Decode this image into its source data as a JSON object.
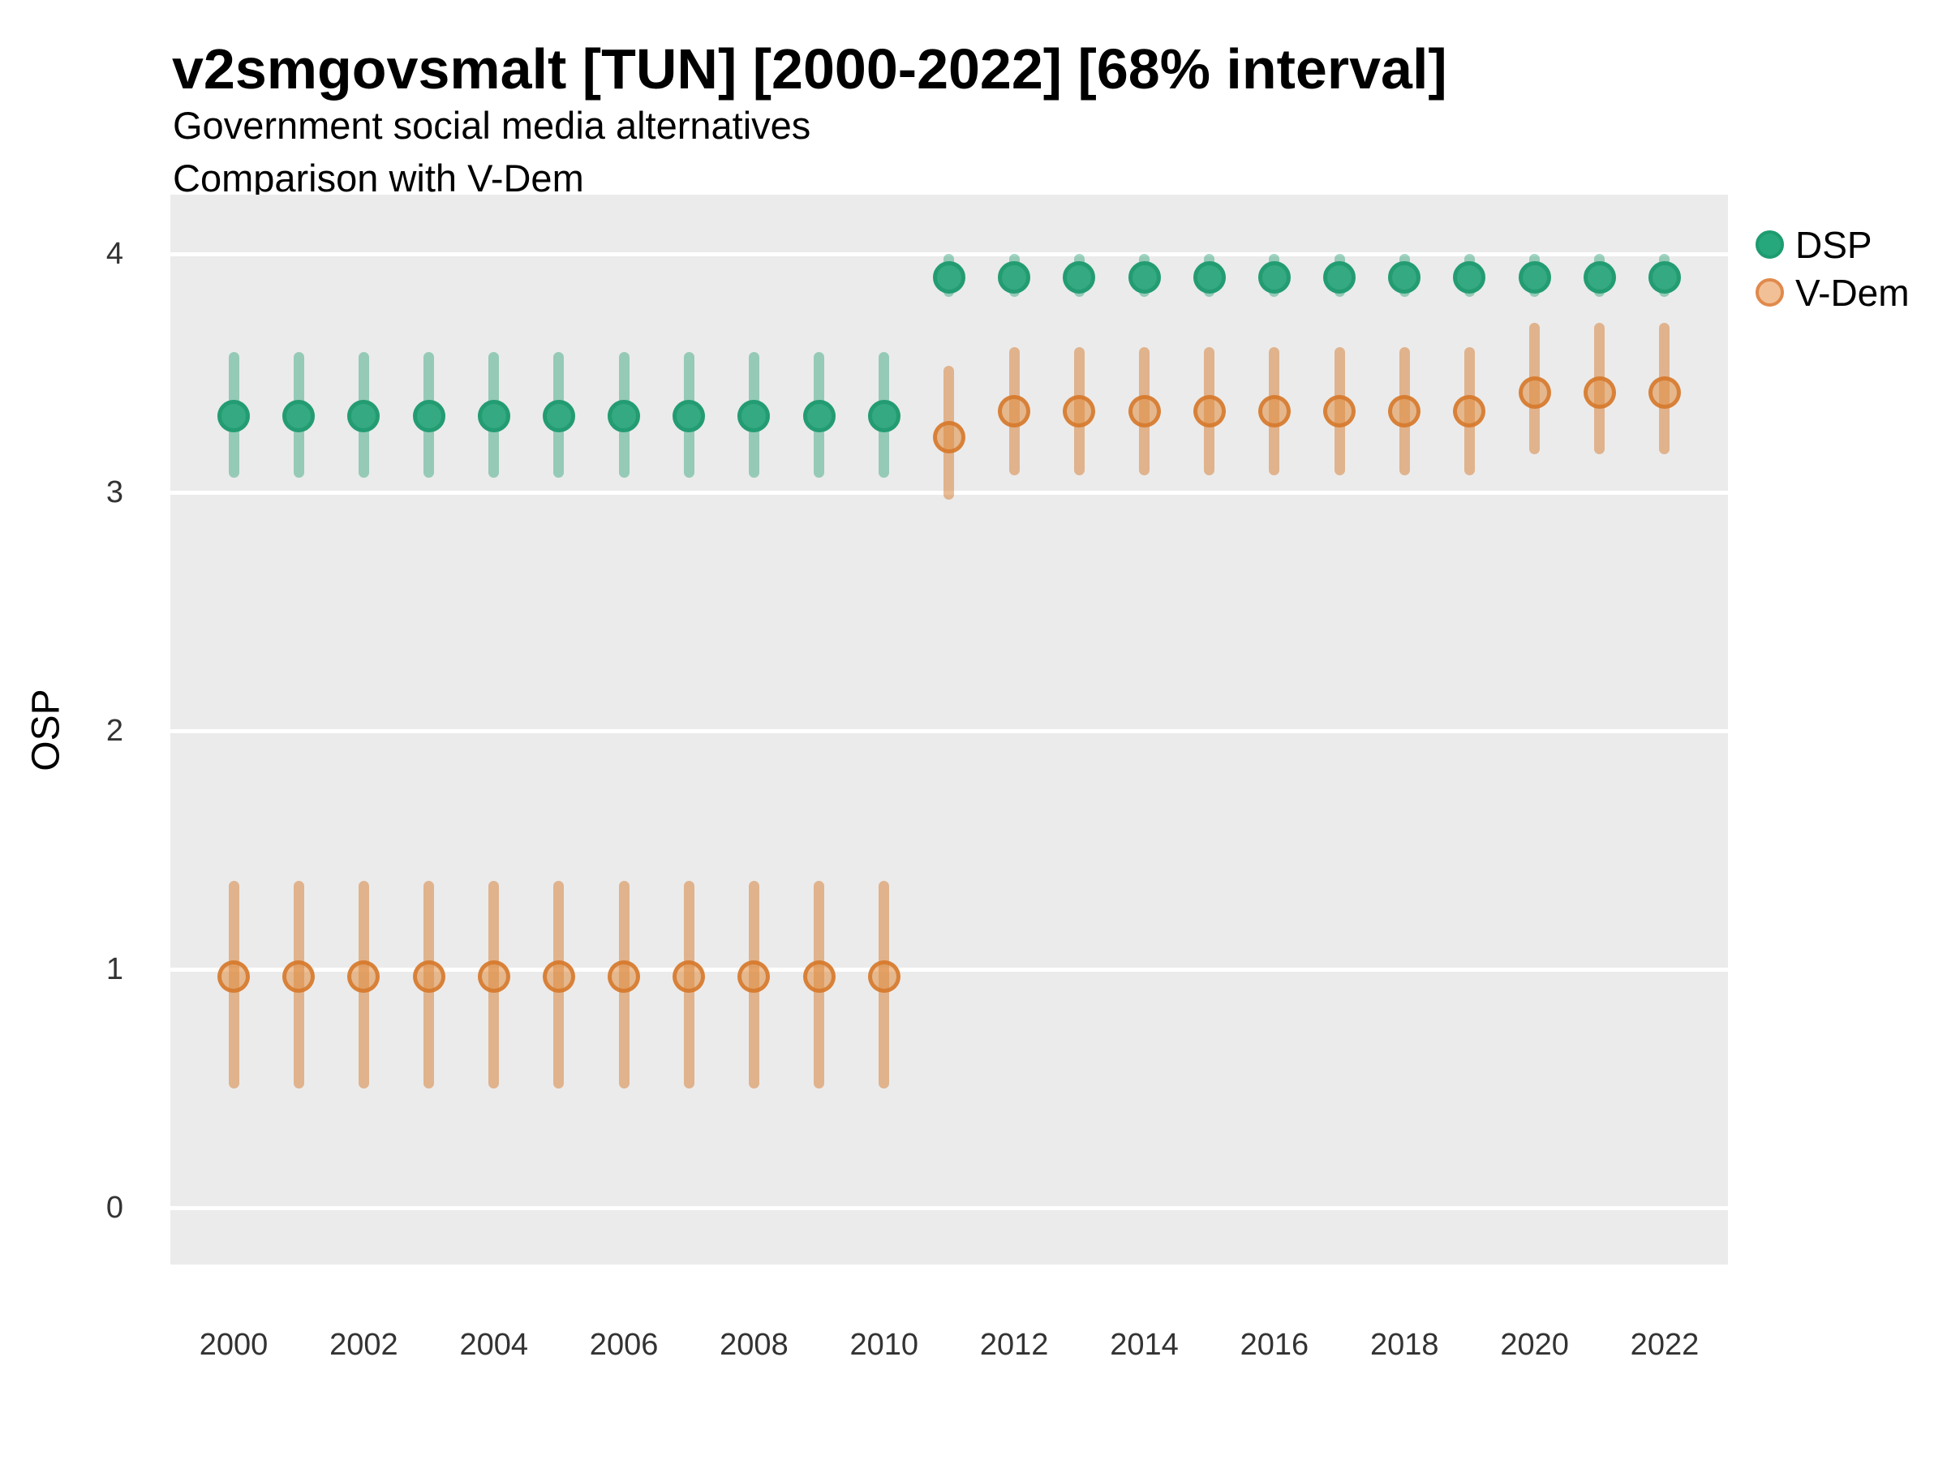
{
  "chart_data": {
    "type": "pointrange-scatter",
    "title": "v2smgovsmalt [TUN] [2000-2022] [68% interval]",
    "subtitle": "Government social media alternatives",
    "subtitle2": "Comparison with V-Dem",
    "ylabel": "OSP",
    "xlabel": "",
    "x_ticks": [
      2000,
      2002,
      2004,
      2006,
      2008,
      2010,
      2012,
      2014,
      2016,
      2018,
      2020,
      2022
    ],
    "y_ticks": [
      0,
      1,
      2,
      3,
      4
    ],
    "xlim": [
      1999,
      2023
    ],
    "ylim": [
      -0.24,
      4.25
    ],
    "grid": "major-horizontal-white-on-gray",
    "legend_position": "right-top",
    "panel_background": "#ebebeb",
    "gridline_color": "#ffffff",
    "interval_label": "68% interval",
    "series": [
      {
        "name": "DSP",
        "dot_fill": "#35a981",
        "dot_stroke": "#239c72",
        "bar_color": "rgba(31,158,111,0.42)",
        "legend_fill": "#27a87c",
        "legend_stroke": "#1d9c70",
        "points": [
          {
            "year": 2000,
            "mean": 3.32,
            "lo": 3.06,
            "hi": 3.59
          },
          {
            "year": 2001,
            "mean": 3.32,
            "lo": 3.06,
            "hi": 3.59
          },
          {
            "year": 2002,
            "mean": 3.32,
            "lo": 3.06,
            "hi": 3.59
          },
          {
            "year": 2003,
            "mean": 3.32,
            "lo": 3.06,
            "hi": 3.59
          },
          {
            "year": 2004,
            "mean": 3.32,
            "lo": 3.06,
            "hi": 3.59
          },
          {
            "year": 2005,
            "mean": 3.32,
            "lo": 3.06,
            "hi": 3.59
          },
          {
            "year": 2006,
            "mean": 3.32,
            "lo": 3.06,
            "hi": 3.59
          },
          {
            "year": 2007,
            "mean": 3.32,
            "lo": 3.06,
            "hi": 3.59
          },
          {
            "year": 2008,
            "mean": 3.32,
            "lo": 3.06,
            "hi": 3.59
          },
          {
            "year": 2009,
            "mean": 3.32,
            "lo": 3.06,
            "hi": 3.59
          },
          {
            "year": 2010,
            "mean": 3.32,
            "lo": 3.06,
            "hi": 3.59
          },
          {
            "year": 2011,
            "mean": 3.9,
            "lo": 3.82,
            "hi": 4.0
          },
          {
            "year": 2012,
            "mean": 3.9,
            "lo": 3.82,
            "hi": 4.0
          },
          {
            "year": 2013,
            "mean": 3.9,
            "lo": 3.82,
            "hi": 4.0
          },
          {
            "year": 2014,
            "mean": 3.9,
            "lo": 3.82,
            "hi": 4.0
          },
          {
            "year": 2015,
            "mean": 3.9,
            "lo": 3.82,
            "hi": 4.0
          },
          {
            "year": 2016,
            "mean": 3.9,
            "lo": 3.82,
            "hi": 4.0
          },
          {
            "year": 2017,
            "mean": 3.9,
            "lo": 3.82,
            "hi": 4.0
          },
          {
            "year": 2018,
            "mean": 3.9,
            "lo": 3.82,
            "hi": 4.0
          },
          {
            "year": 2019,
            "mean": 3.9,
            "lo": 3.82,
            "hi": 4.0
          },
          {
            "year": 2020,
            "mean": 3.9,
            "lo": 3.82,
            "hi": 4.0
          },
          {
            "year": 2021,
            "mean": 3.9,
            "lo": 3.82,
            "hi": 4.0
          },
          {
            "year": 2022,
            "mean": 3.9,
            "lo": 3.82,
            "hi": 4.0
          }
        ]
      },
      {
        "name": "V-Dem",
        "dot_fill": "rgba(224,140,64,0.55)",
        "dot_stroke": "rgba(214,120,42,0.85)",
        "bar_color": "rgba(214,124,47,0.50)",
        "legend_fill": "#f2c096",
        "legend_stroke": "#e08a4c",
        "points": [
          {
            "year": 2000,
            "mean": 0.97,
            "lo": 0.5,
            "hi": 1.37
          },
          {
            "year": 2001,
            "mean": 0.97,
            "lo": 0.5,
            "hi": 1.37
          },
          {
            "year": 2002,
            "mean": 0.97,
            "lo": 0.5,
            "hi": 1.37
          },
          {
            "year": 2003,
            "mean": 0.97,
            "lo": 0.5,
            "hi": 1.37
          },
          {
            "year": 2004,
            "mean": 0.97,
            "lo": 0.5,
            "hi": 1.37
          },
          {
            "year": 2005,
            "mean": 0.97,
            "lo": 0.5,
            "hi": 1.37
          },
          {
            "year": 2006,
            "mean": 0.97,
            "lo": 0.5,
            "hi": 1.37
          },
          {
            "year": 2007,
            "mean": 0.97,
            "lo": 0.5,
            "hi": 1.37
          },
          {
            "year": 2008,
            "mean": 0.97,
            "lo": 0.5,
            "hi": 1.37
          },
          {
            "year": 2009,
            "mean": 0.97,
            "lo": 0.5,
            "hi": 1.37
          },
          {
            "year": 2010,
            "mean": 0.97,
            "lo": 0.5,
            "hi": 1.37
          },
          {
            "year": 2011,
            "mean": 3.23,
            "lo": 2.97,
            "hi": 3.53
          },
          {
            "year": 2012,
            "mean": 3.34,
            "lo": 3.07,
            "hi": 3.61
          },
          {
            "year": 2013,
            "mean": 3.34,
            "lo": 3.07,
            "hi": 3.61
          },
          {
            "year": 2014,
            "mean": 3.34,
            "lo": 3.07,
            "hi": 3.61
          },
          {
            "year": 2015,
            "mean": 3.34,
            "lo": 3.07,
            "hi": 3.61
          },
          {
            "year": 2016,
            "mean": 3.34,
            "lo": 3.07,
            "hi": 3.61
          },
          {
            "year": 2017,
            "mean": 3.34,
            "lo": 3.07,
            "hi": 3.61
          },
          {
            "year": 2018,
            "mean": 3.34,
            "lo": 3.07,
            "hi": 3.61
          },
          {
            "year": 2019,
            "mean": 3.34,
            "lo": 3.07,
            "hi": 3.61
          },
          {
            "year": 2020,
            "mean": 3.42,
            "lo": 3.16,
            "hi": 3.71
          },
          {
            "year": 2021,
            "mean": 3.42,
            "lo": 3.16,
            "hi": 3.71
          },
          {
            "year": 2022,
            "mean": 3.42,
            "lo": 3.16,
            "hi": 3.71
          }
        ]
      }
    ]
  }
}
